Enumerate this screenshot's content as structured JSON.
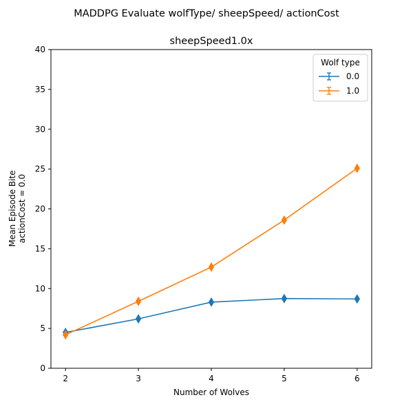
{
  "chart_data": {
    "type": "line",
    "suptitle": "MADDPG Evaluate wolfType/ sheepSpeed/ actionCost",
    "title": "sheepSpeed1.0x",
    "xlabel": "Number of Wolves",
    "ylabel_lines": [
      "Mean Episode Bite",
      "actionCost = 0.0"
    ],
    "x": [
      2,
      3,
      4,
      5,
      6
    ],
    "xticks": [
      2,
      3,
      4,
      5,
      6
    ],
    "xlim": [
      1.8,
      6.2
    ],
    "ylim": [
      0,
      40
    ],
    "yticks": [
      0,
      5,
      10,
      15,
      20,
      25,
      30,
      35,
      40
    ],
    "grid": false,
    "marker": "thin_diamond",
    "legend": {
      "title": "Wolf type",
      "placement": "top-right"
    },
    "series": [
      {
        "name": "0.0",
        "color": "#1f77b4",
        "values": [
          4.5,
          6.2,
          8.3,
          8.75,
          8.7
        ]
      },
      {
        "name": "1.0",
        "color": "#ff7f0e",
        "values": [
          4.2,
          8.4,
          12.7,
          18.6,
          25.1
        ]
      }
    ]
  }
}
